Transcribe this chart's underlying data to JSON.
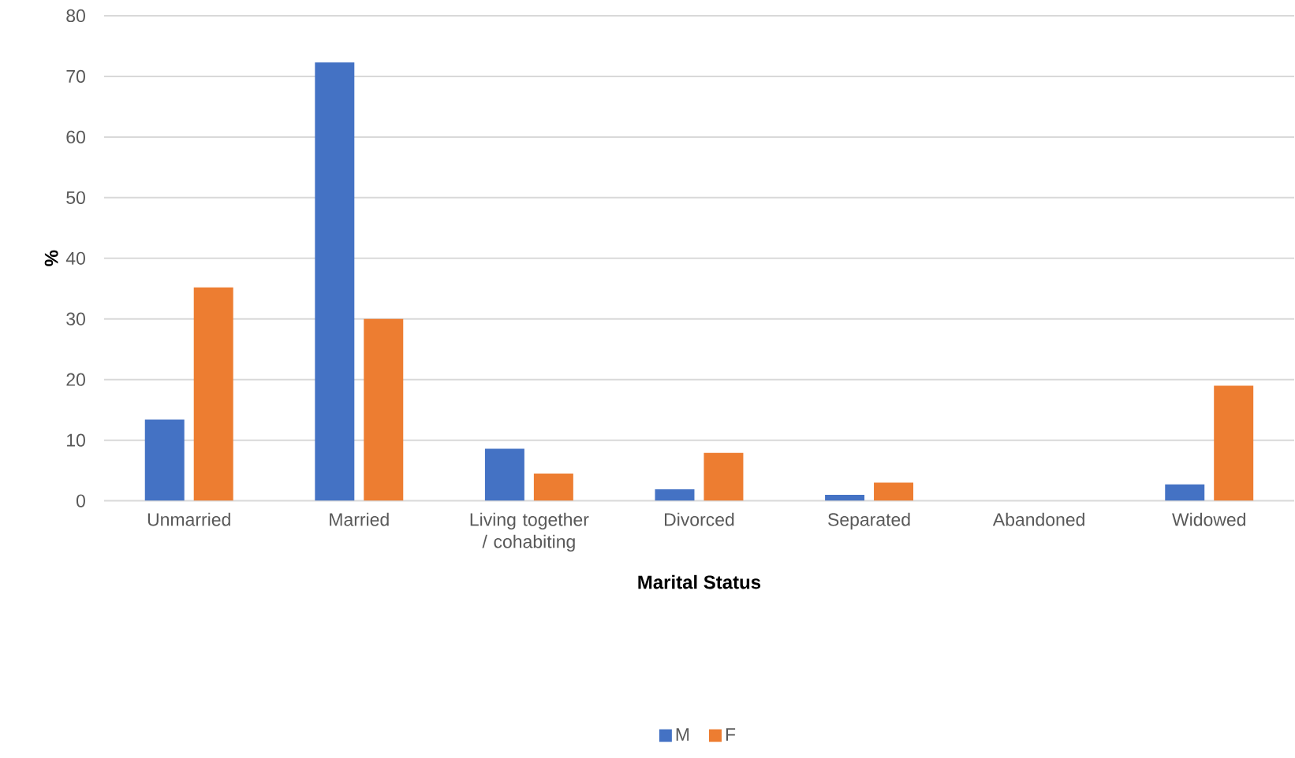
{
  "chart_data": {
    "type": "bar",
    "xlabel": "Marital Status",
    "ylabel": "%",
    "categories": [
      "Unmarried",
      "Married",
      "Living together / cohabiting",
      "Divorced",
      "Separated",
      "Abandoned",
      "Widowed"
    ],
    "series": [
      {
        "name": "M",
        "color": "#4472c4",
        "values": [
          13.4,
          72.3,
          8.6,
          1.9,
          1.0,
          0,
          2.7
        ]
      },
      {
        "name": "F",
        "color": "#ed7d31",
        "values": [
          35.2,
          30.0,
          4.5,
          7.9,
          3.0,
          0,
          19.0
        ]
      }
    ],
    "ylim": [
      0,
      80
    ],
    "yticks": [
      0,
      10,
      20,
      30,
      40,
      50,
      60,
      70,
      80
    ],
    "grid": "y",
    "legend": "bottom"
  }
}
